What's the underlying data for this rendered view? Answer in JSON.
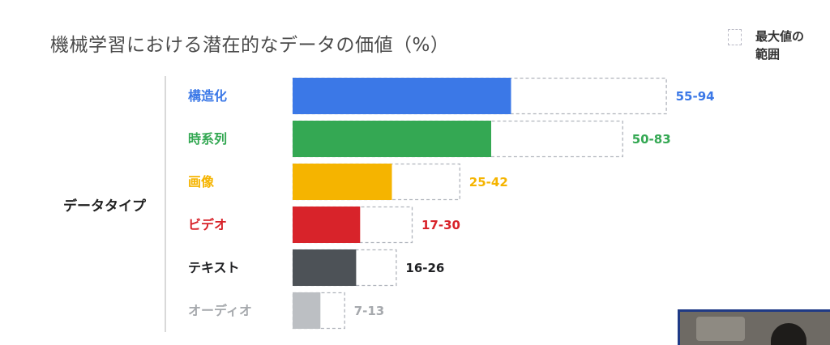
{
  "title": "機械学習における潜在的なデータの価値（%）",
  "legend": {
    "label": "最大値の範囲"
  },
  "group_label": "データタイプ",
  "chart_data": {
    "type": "bar",
    "orientation": "horizontal",
    "title": "機械学習における潜在的なデータの価値（%）",
    "xlabel": "",
    "ylabel": "データタイプ",
    "xlim": [
      0,
      100
    ],
    "grid": false,
    "legend_position": "top-right",
    "categories": [
      "構造化",
      "時系列",
      "画像",
      "ビデオ",
      "テキスト",
      "オーディオ"
    ],
    "range_labels": [
      "55-94",
      "50-83",
      "25-42",
      "17-30",
      "16-26",
      "7-13"
    ],
    "series": [
      {
        "values": [
          55,
          50,
          25,
          17,
          16,
          7
        ]
      },
      {
        "name": "最大値の範囲",
        "values": [
          94,
          83,
          42,
          30,
          26,
          13
        ]
      }
    ],
    "colors": [
      "#3b78e7",
      "#34a853",
      "#f5b400",
      "#d8232a",
      "#4d5257",
      "#bcbfc3"
    ],
    "label_colors": [
      "#3b78e7",
      "#34a853",
      "#f5b400",
      "#d8232a",
      "#202124",
      "#a6a9ad"
    ]
  }
}
